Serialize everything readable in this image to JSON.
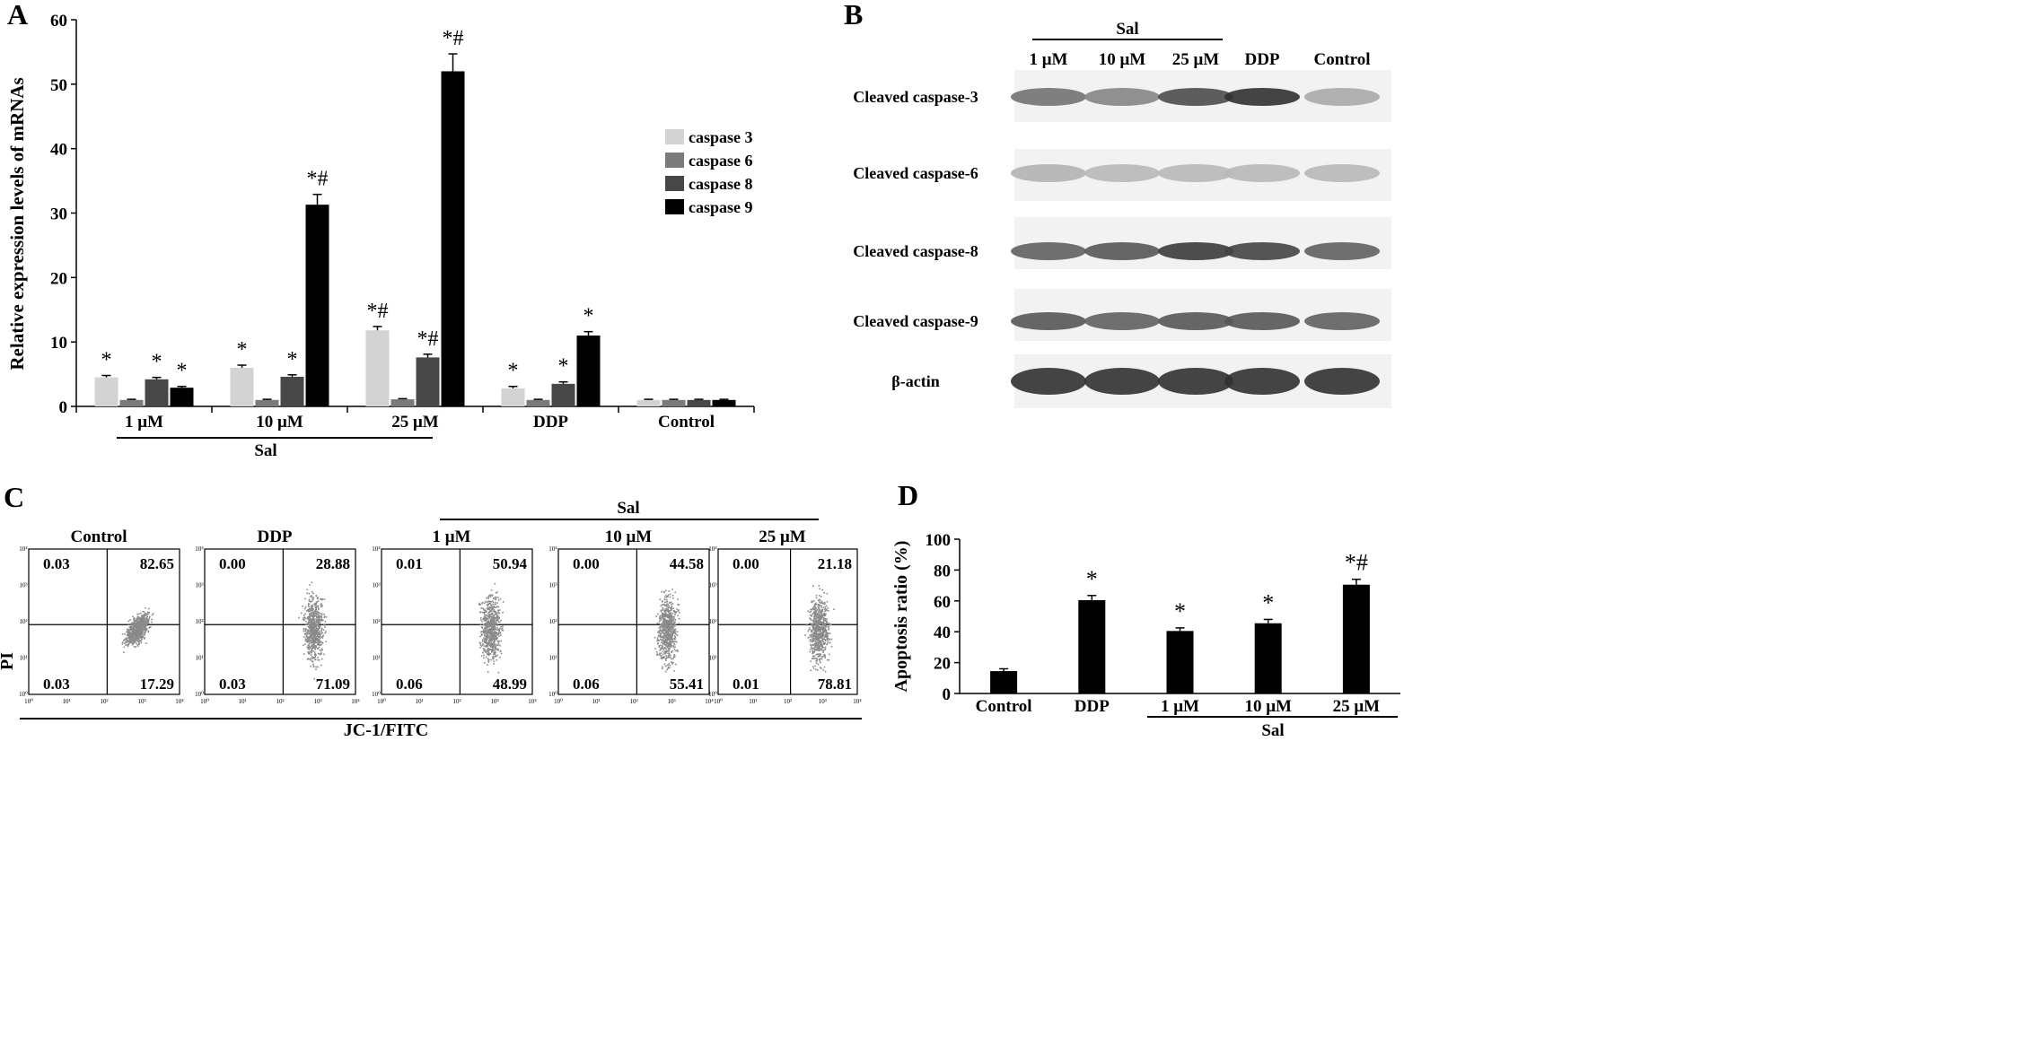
{
  "colors": {
    "caspase3": "#d3d3d3",
    "caspase6": "#7a7a7a",
    "caspase8": "#474747",
    "caspase9": "#000000",
    "bar_d": "#000000",
    "dots": "#8a8a8a"
  },
  "panels": {
    "A": {
      "letter": "A",
      "ylabel": "Relative expression levels of mRNAs",
      "group_label": "Sal"
    },
    "B": {
      "letter": "B",
      "group_label": "Sal",
      "lanes": [
        "1 μM",
        "10 μM",
        "25 μM",
        "DDP",
        "Control"
      ],
      "bands": [
        {
          "label": "Cleaved caspase-3",
          "intensity": [
            0.6,
            0.5,
            0.8,
            0.95,
            0.3
          ]
        },
        {
          "label": "Cleaved caspase-6",
          "intensity": [
            0.25,
            0.22,
            0.22,
            0.22,
            0.22
          ]
        },
        {
          "label": "Cleaved caspase-8",
          "intensity": [
            0.7,
            0.75,
            0.9,
            0.85,
            0.7
          ]
        },
        {
          "label": "Cleaved caspase-9",
          "intensity": [
            0.75,
            0.7,
            0.75,
            0.75,
            0.7
          ]
        },
        {
          "label": "β-actin",
          "intensity": [
            0.95,
            0.95,
            0.95,
            0.95,
            0.95
          ]
        }
      ]
    },
    "C": {
      "letter": "C",
      "group_label": "Sal",
      "xlabel": "JC-1/FITC",
      "ylabel": "PI",
      "tick_labels": [
        "10⁰",
        "10¹",
        "10²",
        "10³",
        "10⁴"
      ],
      "plots": [
        {
          "title": "Control",
          "q": {
            "ul": "0.03",
            "ur": "82.65",
            "ll": "0.03",
            "lr": "17.29"
          }
        },
        {
          "title": "DDP",
          "q": {
            "ul": "0.00",
            "ur": "28.88",
            "ll": "0.03",
            "lr": "71.09"
          }
        },
        {
          "title": "1  μM",
          "q": {
            "ul": "0.01",
            "ur": "50.94",
            "ll": "0.06",
            "lr": "48.99"
          }
        },
        {
          "title": "10  μM",
          "q": {
            "ul": "0.00",
            "ur": "44.58",
            "ll": "0.06",
            "lr": "55.41"
          }
        },
        {
          "title": "25  μM",
          "q": {
            "ul": "0.00",
            "ur": "21.18",
            "ll": "0.01",
            "lr": "78.81"
          }
        }
      ]
    },
    "D": {
      "letter": "D",
      "group_label": "Sal"
    }
  },
  "chart_data": [
    {
      "id": "A",
      "type": "bar",
      "title": "",
      "xlabel": "",
      "ylabel": "Relative expression levels of mRNAs",
      "categories": [
        "1 μM",
        "10 μM",
        "25 μM",
        "DDP",
        "Control"
      ],
      "ylim": [
        0,
        60
      ],
      "yticks": [
        0,
        10,
        20,
        30,
        40,
        50,
        60
      ],
      "legend_position": "right",
      "series": [
        {
          "name": "caspase 3",
          "values": [
            4.5,
            6.0,
            11.8,
            2.8,
            1.0
          ],
          "errors": [
            0.3,
            0.4,
            0.6,
            0.3,
            0.1
          ],
          "annotations": [
            "*",
            "*",
            "*#",
            "*",
            ""
          ]
        },
        {
          "name": "caspase 6",
          "values": [
            1.0,
            1.0,
            1.1,
            1.0,
            1.0
          ],
          "errors": [
            0.1,
            0.1,
            0.1,
            0.1,
            0.1
          ],
          "annotations": [
            "",
            "",
            "",
            "",
            ""
          ]
        },
        {
          "name": "caspase 8",
          "values": [
            4.2,
            4.6,
            7.6,
            3.5,
            1.0
          ],
          "errors": [
            0.3,
            0.3,
            0.5,
            0.3,
            0.1
          ],
          "annotations": [
            "*",
            "*",
            "*#",
            "*",
            ""
          ]
        },
        {
          "name": "caspase 9",
          "values": [
            2.9,
            31.3,
            52.0,
            11.0,
            1.0
          ],
          "errors": [
            0.2,
            1.6,
            2.7,
            0.6,
            0.1
          ],
          "annotations": [
            "*",
            "*#",
            "*#",
            "*",
            ""
          ]
        }
      ]
    },
    {
      "id": "D",
      "type": "bar",
      "title": "",
      "xlabel": "",
      "ylabel": "Apoptosis ratio (%)",
      "categories": [
        "Control",
        "DDP",
        "1  μM",
        "10  μM",
        "25  μM"
      ],
      "ylim": [
        0,
        100
      ],
      "yticks": [
        0,
        20,
        40,
        60,
        80,
        100
      ],
      "series": [
        {
          "values": [
            14.5,
            60.5,
            40.5,
            45.5,
            70.5
          ],
          "errors": [
            1.5,
            3.0,
            2.0,
            2.5,
            3.5
          ],
          "annotations": [
            "",
            "*",
            "*",
            "*",
            "*#"
          ]
        }
      ]
    }
  ]
}
